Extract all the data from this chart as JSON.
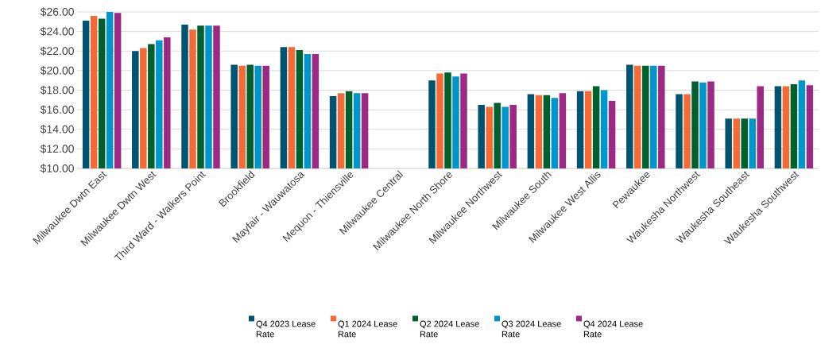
{
  "chart_data": {
    "type": "bar",
    "categories": [
      "Milwaukee Dwtn East",
      "Milwaukee Dwtn West",
      "Third Ward - Walkers Point",
      "Brookfield",
      "Mayfair - Wauwatosa",
      "Mequon - Thiensville",
      "Milwaukee Central",
      "Milwaukee North Shore",
      "Milwaukee Northwest",
      "Milwaukee South",
      "Milwaukee West Allis",
      "Pewaukee",
      "Waukesha Northwest",
      "Waukesha Southeast",
      "Waukesha Southwest"
    ],
    "series": [
      {
        "name": "Q4 2023 Lease Rate",
        "color": "#00546f",
        "values": [
          25.1,
          22.0,
          24.7,
          20.6,
          22.4,
          17.4,
          null,
          19.0,
          16.5,
          17.6,
          17.9,
          20.6,
          17.6,
          15.1,
          18.4
        ]
      },
      {
        "name": "Q1 2024 Lease Rate",
        "color": "#f26a36",
        "values": [
          25.6,
          22.3,
          24.2,
          20.5,
          22.4,
          17.7,
          null,
          19.7,
          16.3,
          17.5,
          17.9,
          20.5,
          17.6,
          15.1,
          18.4
        ]
      },
      {
        "name": "Q2 2024 Lease Rate",
        "color": "#00612e",
        "values": [
          25.3,
          22.7,
          24.6,
          20.6,
          22.1,
          17.9,
          null,
          19.8,
          16.7,
          17.5,
          18.4,
          20.5,
          18.9,
          15.1,
          18.6
        ]
      },
      {
        "name": "Q3 2024 Lease Rate",
        "color": "#0096cc",
        "values": [
          26.0,
          23.1,
          24.6,
          20.5,
          21.7,
          17.7,
          null,
          19.4,
          16.3,
          17.2,
          18.0,
          20.5,
          18.8,
          15.1,
          19.0
        ]
      },
      {
        "name": "Q4 2024 Lease Rate",
        "color": "#9c2a84",
        "values": [
          25.9,
          23.4,
          24.6,
          20.5,
          21.7,
          17.7,
          null,
          19.7,
          16.5,
          17.7,
          16.9,
          20.5,
          18.9,
          18.4,
          18.5
        ]
      }
    ],
    "ylim": [
      10,
      26
    ],
    "yticks": [
      {
        "value": 10,
        "label": "$10.00"
      },
      {
        "value": 12,
        "label": "$12.00"
      },
      {
        "value": 14,
        "label": "$14.00"
      },
      {
        "value": 16,
        "label": "$16.00"
      },
      {
        "value": 18,
        "label": "$18.00"
      },
      {
        "value": 20,
        "label": "$20.00"
      },
      {
        "value": 22,
        "label": "$22.00"
      },
      {
        "value": 24,
        "label": "$24.00"
      },
      {
        "value": 26,
        "label": "$26.00"
      }
    ],
    "grid": "y",
    "legend": "bottom"
  }
}
